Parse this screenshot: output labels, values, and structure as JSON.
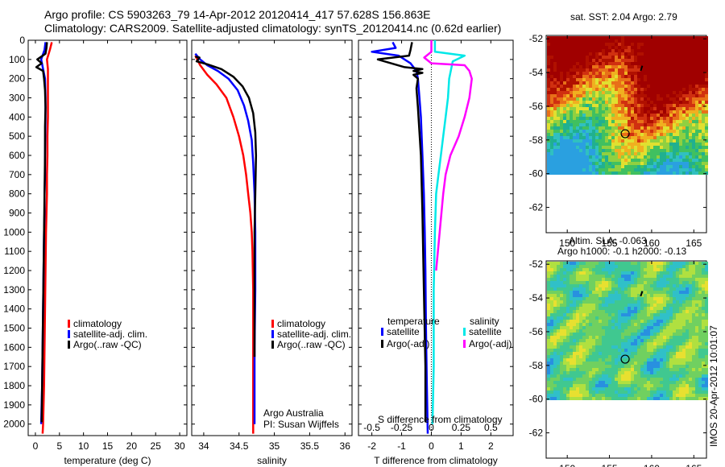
{
  "title": {
    "line1": "Argo profile: CS 5903263_79 14-Apr-2012 20120414_417 57.628S 156.863E",
    "line2": "Climatology: CARS2009. Satellite-adjusted climatology: synTS_20120414.nc (0.62d earlier)"
  },
  "colors": {
    "climatology": "#ff0000",
    "satellite": "#0000ff",
    "argo": "#000000",
    "sat_salinity": "#00e8e8",
    "argo_salinity": "#ff00ff"
  },
  "chart_data": [
    {
      "type": "line",
      "xlabel": "temperature (deg C)",
      "xticks": [
        "0",
        "5",
        "10",
        "15",
        "20",
        "25",
        "30"
      ],
      "xlim": [
        -1.5,
        31.5
      ],
      "ylim": [
        0,
        2060
      ],
      "yticks": [
        "0",
        "100",
        "200",
        "300",
        "400",
        "500",
        "600",
        "700",
        "800",
        "900",
        "1000",
        "1100",
        "1200",
        "1300",
        "1400",
        "1500",
        "1600",
        "1700",
        "1800",
        "1900",
        "2000"
      ],
      "legend": [
        "climatology",
        "satellite-adj. clim.",
        "Argo(..raw -QC)"
      ],
      "series": [
        {
          "name": "climatology",
          "x": [
            3.4,
            3.0,
            2.4,
            2.6,
            2.6,
            2.6,
            2.6,
            2.5,
            2.5,
            2.4,
            2.4,
            2.3,
            2.2,
            2.1,
            2.0,
            1.9,
            1.8,
            1.7,
            1.6,
            1.5
          ],
          "y": [
            10,
            50,
            100,
            150,
            200,
            300,
            400,
            500,
            600,
            700,
            800,
            900,
            1000,
            1200,
            1400,
            1600,
            1800,
            1900,
            2000,
            2050
          ]
        },
        {
          "name": "satellite-adj. clim.",
          "x": [
            2.1,
            1.9,
            1.2,
            1.6,
            2.0,
            2.1,
            2.1,
            2.0,
            2.0,
            1.9,
            1.9,
            1.8,
            1.7,
            1.6,
            1.5,
            1.4,
            1.3,
            1.2
          ],
          "y": [
            10,
            50,
            100,
            150,
            200,
            300,
            400,
            600,
            700,
            800,
            900,
            1000,
            1200,
            1400,
            1600,
            1800,
            1900,
            2000
          ]
        },
        {
          "name": "Argo(..raw -QC)",
          "x": [
            2.4,
            2.3,
            2.1,
            0.4,
            1.3,
            0.2,
            1.6,
            1.8,
            2.0,
            2.1,
            2.0,
            2.0,
            1.9,
            1.8,
            1.7,
            1.6,
            1.5,
            1.4,
            1.3
          ],
          "y": [
            10,
            40,
            70,
            100,
            120,
            140,
            160,
            200,
            260,
            350,
            450,
            600,
            800,
            1000,
            1200,
            1400,
            1600,
            1800,
            1990
          ]
        }
      ]
    },
    {
      "type": "line",
      "xlabel": "salinity",
      "xticks": [
        "34",
        "34.5",
        "35",
        "35.5",
        "36"
      ],
      "xlim": [
        33.83,
        36.1
      ],
      "ylim": [
        0,
        2060
      ],
      "legend": [
        "climatology",
        "satellite-adj. clim.",
        "Argo(..raw -QC)"
      ],
      "annotation": [
        "Argo Australia",
        "PI: Susan Wijffels"
      ],
      "series": [
        {
          "name": "climatology",
          "x": [
            33.88,
            33.95,
            34.05,
            34.18,
            34.32,
            34.42,
            34.5,
            34.56,
            34.6,
            34.63,
            34.66,
            34.68,
            34.69,
            34.7,
            34.7,
            34.7
          ],
          "y": [
            80,
            130,
            180,
            230,
            300,
            400,
            500,
            600,
            700,
            800,
            900,
            1000,
            1100,
            1300,
            1600,
            2050
          ]
        },
        {
          "name": "satellite-adj. clim.",
          "x": [
            33.88,
            33.95,
            34.05,
            34.2,
            34.35,
            34.48,
            34.57,
            34.63,
            34.68,
            34.7,
            34.72,
            34.73,
            34.73,
            34.72,
            34.72
          ],
          "y": [
            70,
            100,
            130,
            160,
            200,
            260,
            340,
            420,
            520,
            640,
            800,
            1000,
            1300,
            1600,
            2000
          ]
        },
        {
          "name": "Argo(..raw -QC)",
          "x": [
            33.88,
            33.94,
            33.9,
            34.05,
            34.25,
            34.42,
            34.55,
            34.64,
            34.7,
            34.73,
            34.74,
            34.73,
            34.72,
            34.72
          ],
          "y": [
            85,
            90,
            110,
            125,
            150,
            190,
            240,
            300,
            380,
            480,
            600,
            800,
            1000,
            1650
          ]
        }
      ]
    },
    {
      "type": "line",
      "xlabel": "T difference from climatology",
      "xticks": [
        "-2",
        "-1",
        "0",
        "1",
        "2"
      ],
      "xlim": [
        -2.45,
        2.75
      ],
      "top_label": "S difference from climatology",
      "top_ticks": [
        "-0.5",
        "-0.25",
        "0",
        "0.25",
        "0.5"
      ],
      "ylim": [
        0,
        2060
      ],
      "legend_titles": [
        "temperature",
        "salinity"
      ],
      "legend": [
        "satellite",
        "Argo(-adj)",
        "satellite",
        "Argo(-adj)"
      ],
      "series": [
        {
          "name": "temperature satellite",
          "x": [
            -1.3,
            -1.2,
            -2.0,
            -1.1,
            -0.7,
            -0.5,
            -0.45,
            -0.4,
            -0.35,
            -0.3,
            -0.25,
            -0.22,
            -0.2,
            -0.18,
            -0.15,
            -0.12
          ],
          "y": [
            10,
            40,
            60,
            80,
            120,
            160,
            200,
            300,
            400,
            600,
            800,
            1000,
            1200,
            1500,
            1800,
            2050
          ]
        },
        {
          "name": "temperature Argo(-adj)",
          "x": [
            -0.65,
            -0.7,
            -0.75,
            -1.8,
            -0.9,
            -0.3,
            -0.6,
            -0.3,
            -0.6,
            -0.45,
            -0.5,
            -0.45,
            -0.35,
            -0.3,
            -0.25,
            -0.2,
            -0.2
          ],
          "y": [
            10,
            50,
            80,
            100,
            140,
            150,
            160,
            170,
            180,
            200,
            250,
            350,
            600,
            900,
            1300,
            1700,
            1990
          ]
        },
        {
          "name": "salinity satellite",
          "x": [
            0.03,
            0.03,
            0.28,
            0.18,
            0.15,
            0.14,
            0.12,
            0.1,
            0.08,
            0.06,
            0.04,
            0.03,
            0.02,
            0.02,
            0.01
          ],
          "y": [
            0,
            60,
            80,
            110,
            200,
            300,
            400,
            500,
            600,
            700,
            800,
            1000,
            1300,
            1700,
            2000
          ]
        },
        {
          "name": "salinity Argo(-adj)",
          "x": [
            0.0,
            0.0,
            -0.06,
            0.0,
            0.28,
            0.32,
            0.34,
            0.32,
            0.28,
            0.23,
            0.16,
            0.12,
            0.1,
            0.07,
            0.04
          ],
          "y": [
            0,
            60,
            90,
            120,
            130,
            160,
            200,
            300,
            400,
            500,
            600,
            700,
            800,
            1000,
            1200
          ]
        }
      ]
    },
    {
      "type": "heatmap",
      "title": "sat. SST: 2.04  Argo: 2.79",
      "xticks": [
        "150",
        "155",
        "160",
        "165"
      ],
      "yticks": [
        "-52",
        "-54",
        "-56",
        "-58",
        "-60",
        "-62"
      ],
      "xlim": [
        147.5,
        166.5
      ],
      "ylim": [
        -63.5,
        -51.8
      ]
    },
    {
      "type": "heatmap",
      "title_lines": [
        "Altim. SLA: -0.063",
        "Argo h1000: -0.1 h2000: -0.13"
      ],
      "xticks": [
        "150",
        "155",
        "160",
        "165"
      ],
      "yticks": [
        "-52",
        "-54",
        "-56",
        "-58",
        "-60",
        "-62"
      ],
      "xlim": [
        147.5,
        166.5
      ],
      "ylim": [
        -63.5,
        -51.8
      ]
    }
  ],
  "float_position": {
    "lon": 156.863,
    "lat": -57.628
  },
  "stamp": "IMOS 20-Apr-2012 10:01:07"
}
